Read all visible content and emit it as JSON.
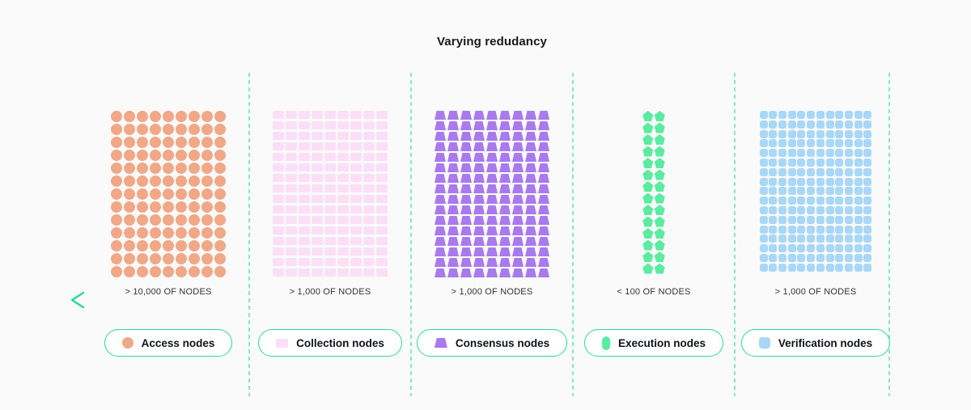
{
  "title": "Varying redudancy",
  "colors": {
    "background": "#FAFAFA",
    "divider": "#82EBC0",
    "pill_border": "#2BD89A",
    "title_text": "#1A1A1A",
    "count_text": "#333333"
  },
  "arrow": {
    "direction": "left",
    "color_start": "#21DB99",
    "color_end": "#0E8756"
  },
  "groups": [
    {
      "id": "access",
      "legend_label": "Access nodes",
      "count_label": "> 10,000 OF NODES",
      "shape": "circle",
      "icon": "circle",
      "color": "#F1A886",
      "cols": 9,
      "rows": 13
    },
    {
      "id": "collection",
      "legend_label": "Collection nodes",
      "count_label": "> 1,000 OF NODES",
      "shape": "rect",
      "icon": "rect",
      "color": "#FBDFF6",
      "cols": 9,
      "rows": 16
    },
    {
      "id": "consensus",
      "legend_label": "Consensus nodes",
      "count_label": "> 1,000 OF NODES",
      "shape": "trapezoid",
      "icon": "trapezoid",
      "color": "#A97AEE",
      "cols": 9,
      "rows": 16
    },
    {
      "id": "execution",
      "legend_label": "Execution nodes",
      "count_label": "< 100 OF NODES",
      "shape": "pentagon",
      "icon": "capsule",
      "color": "#5BEBA1",
      "cols": 2,
      "rows": 14
    },
    {
      "id": "verification",
      "legend_label": "Verification nodes",
      "count_label": "> 1,000 OF NODES",
      "shape": "roundsquare",
      "icon": "roundsquare",
      "color": "#A8D7F8",
      "cols": 12,
      "rows": 17
    }
  ]
}
